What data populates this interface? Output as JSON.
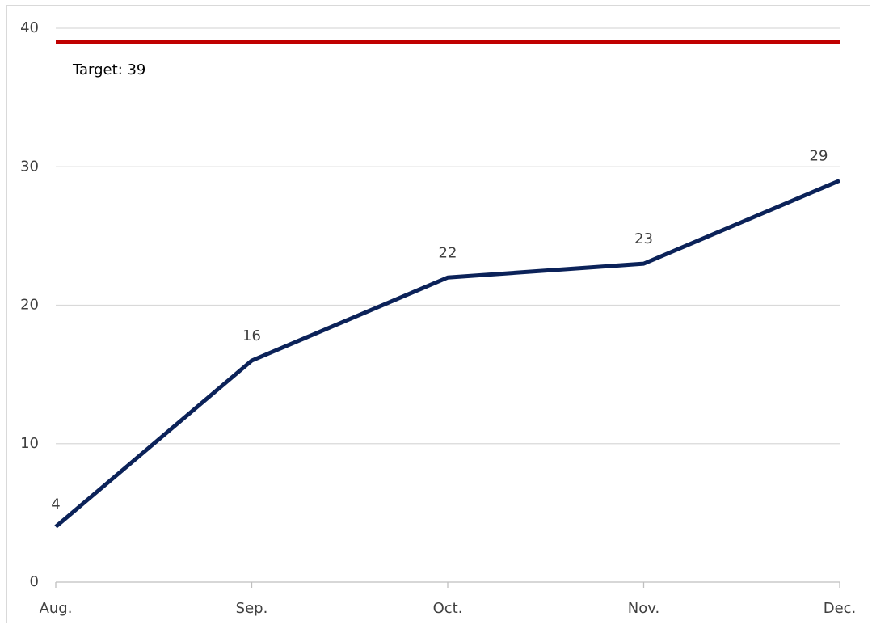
{
  "chart_data": {
    "type": "line",
    "categories": [
      "Aug.",
      "Sep.",
      "Oct.",
      "Nov.",
      "Dec."
    ],
    "values": [
      4,
      16,
      22,
      23,
      29
    ],
    "color": "#0b2259",
    "target": {
      "value": 39,
      "label": "Target: 39",
      "color": "#c00000"
    },
    "ylim": [
      0,
      40
    ],
    "yticks": [
      0,
      10,
      20,
      30,
      40
    ],
    "grid": true
  }
}
